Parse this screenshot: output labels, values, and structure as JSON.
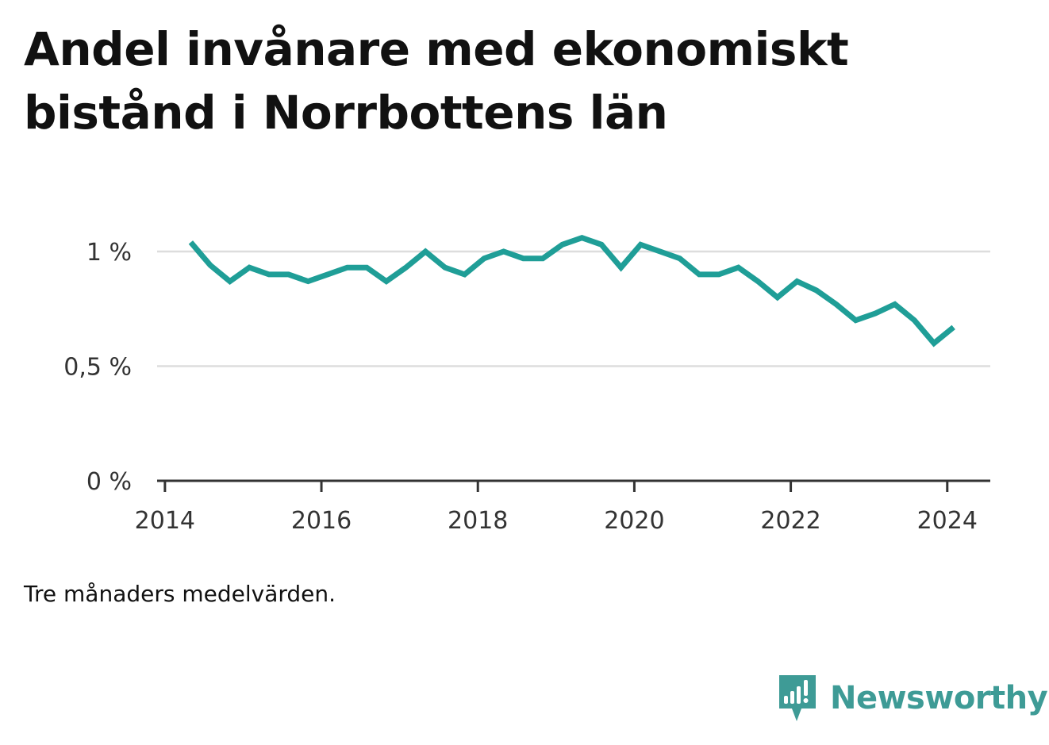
{
  "title": "Andel invånare med ekonomiskt bistånd i Norrbottens län",
  "note": "Tre månaders medelvärden.",
  "brand": {
    "name": "Newsworthy",
    "icon": "newsworthy-bar-chart-icon",
    "color": "#3e9b96"
  },
  "chart_data": {
    "type": "line",
    "title": "Andel invånare med ekonomiskt bistånd i Norrbottens län",
    "xlabel": "",
    "ylabel": "",
    "xlim": [
      2013.9,
      2024.55
    ],
    "ylim": [
      0,
      1.1
    ],
    "x_ticks": [
      2014,
      2016,
      2018,
      2020,
      2022,
      2024
    ],
    "x_tick_labels": [
      "2014",
      "2016",
      "2018",
      "2020",
      "2022",
      "2024"
    ],
    "y_ticks": [
      0,
      0.5,
      1
    ],
    "y_tick_labels": [
      "0 %",
      "0,5 %",
      "1 %"
    ],
    "grid": "horizontal",
    "legend": "none",
    "line_color": "#1f9e97",
    "series": [
      {
        "x": [
          2014.33,
          2014.58,
          2014.83,
          2015.08,
          2015.33,
          2015.58,
          2015.83,
          2016.08,
          2016.33,
          2016.58,
          2016.83,
          2017.08,
          2017.33,
          2017.58,
          2017.83,
          2018.08,
          2018.33,
          2018.58,
          2018.83,
          2019.08,
          2019.33,
          2019.58,
          2019.83,
          2020.08,
          2020.33,
          2020.58,
          2020.83,
          2021.08,
          2021.33,
          2021.58,
          2021.83,
          2022.08,
          2022.33,
          2022.58,
          2022.83,
          2023.08,
          2023.33,
          2023.58,
          2023.83,
          2024.08
        ],
        "values": [
          1.04,
          0.94,
          0.87,
          0.93,
          0.9,
          0.9,
          0.87,
          0.9,
          0.93,
          0.93,
          0.87,
          0.93,
          1.0,
          0.93,
          0.9,
          0.97,
          1.0,
          0.97,
          0.97,
          1.03,
          1.06,
          1.03,
          0.93,
          1.03,
          1.0,
          0.97,
          0.9,
          0.9,
          0.93,
          0.87,
          0.8,
          0.87,
          0.83,
          0.77,
          0.7,
          0.73,
          0.77,
          0.7,
          0.6,
          0.67
        ]
      }
    ]
  }
}
